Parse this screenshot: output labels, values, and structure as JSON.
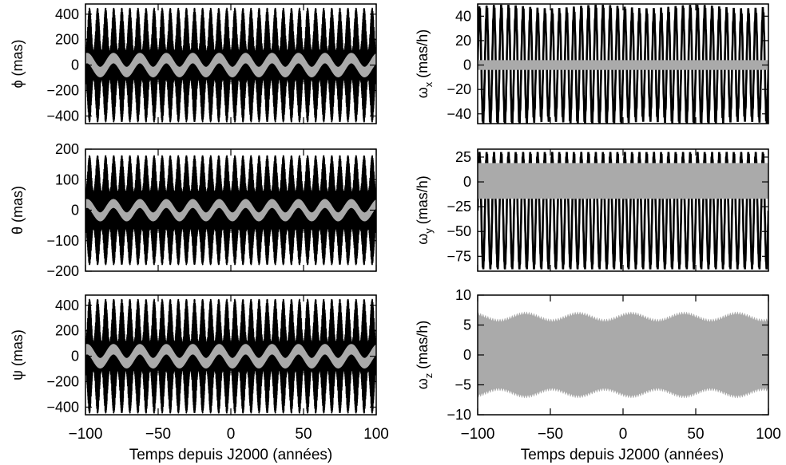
{
  "figure": {
    "xlabel_left": "Temps depuis J2000 (années)",
    "xlabel_right": "Temps depuis J2000 (années)"
  },
  "chart_data": [
    {
      "id": "phi",
      "type": "line",
      "ylabel": "ϕ (mas)",
      "xlim": [
        -100,
        100
      ],
      "ylim": [
        -460,
        480
      ],
      "yticks": [
        400,
        200,
        0,
        -200,
        -400
      ],
      "ytick_labels": [
        "400",
        "200",
        "0",
        "−200",
        "−400"
      ],
      "xticks": [
        -100,
        -50,
        0,
        50,
        100
      ],
      "xtick_labels": [],
      "series": [
        {
          "color": "#000000",
          "envelope": "beat",
          "amplitude_max": 450,
          "amplitude_min": 110,
          "cycles_per_period": 36,
          "band_min": 60,
          "band_max": 100,
          "band_cycles": 40
        },
        {
          "color": "#aaaaaa",
          "envelope": "wave",
          "half_width": 35,
          "mean_offset": 55,
          "wave_cycles": 11
        }
      ]
    },
    {
      "id": "theta",
      "type": "line",
      "ylabel": "θ (mas)",
      "xlim": [
        -100,
        100
      ],
      "ylim": [
        -200,
        200
      ],
      "yticks": [
        200,
        100,
        0,
        -100,
        -200
      ],
      "ytick_labels": [
        "200",
        "100",
        "0",
        "−100",
        "−200"
      ],
      "xticks": [
        -100,
        -50,
        0,
        50,
        100
      ],
      "xtick_labels": [],
      "series": [
        {
          "color": "#000000",
          "envelope": "beat",
          "amplitude_max": 180,
          "amplitude_min": 60,
          "cycles_per_period": 36,
          "band_min": 40,
          "band_max": 55,
          "band_cycles": 40
        },
        {
          "color": "#aaaaaa",
          "envelope": "wave",
          "half_width": 12,
          "mean_offset": 22,
          "wave_cycles": 11
        }
      ]
    },
    {
      "id": "psi",
      "type": "line",
      "ylabel": "ψ (mas)",
      "xlim": [
        -100,
        100
      ],
      "ylim": [
        -460,
        480
      ],
      "yticks": [
        400,
        200,
        0,
        -200,
        -400
      ],
      "ytick_labels": [
        "400",
        "200",
        "0",
        "−200",
        "−400"
      ],
      "xticks": [
        -100,
        -50,
        0,
        50,
        100
      ],
      "xtick_labels": [
        "−100",
        "−50",
        "0",
        "50",
        "100"
      ],
      "series": [
        {
          "color": "#000000",
          "envelope": "beat",
          "amplitude_max": 450,
          "amplitude_min": 110,
          "cycles_per_period": 36,
          "band_min": 60,
          "band_max": 100,
          "band_cycles": 40
        },
        {
          "color": "#aaaaaa",
          "envelope": "wave",
          "half_width": 35,
          "mean_offset": 55,
          "wave_cycles": 11
        }
      ]
    },
    {
      "id": "omega_x",
      "type": "line",
      "ylabel_base": "ω",
      "ylabel_sub": "x",
      "ylabel_unit": "(mas/h)",
      "xlim": [
        -100,
        100
      ],
      "ylim": [
        -48,
        50
      ],
      "yticks": [
        40,
        20,
        0,
        -20,
        -40
      ],
      "ytick_labels": [
        "40",
        "20",
        "0",
        "−20",
        "−40"
      ],
      "xticks": [
        -100,
        -50,
        0,
        50,
        100
      ],
      "xtick_labels": [],
      "series": [
        {
          "color": "#000000",
          "envelope": "osc",
          "amplitude_max": 47,
          "amplitude_min": 44,
          "cycles": 40
        },
        {
          "color": "#aaaaaa",
          "envelope": "band",
          "half_width": 4
        }
      ]
    },
    {
      "id": "omega_y",
      "type": "line",
      "ylabel_base": "ω",
      "ylabel_sub": "y",
      "ylabel_unit": "(mas/h)",
      "xlim": [
        -100,
        100
      ],
      "ylim": [
        -90,
        33
      ],
      "yticks": [
        25,
        0,
        -25,
        -50,
        -75
      ],
      "ytick_labels": [
        "25",
        "0",
        "−25",
        "−50",
        "−75"
      ],
      "xticks": [
        -100,
        -50,
        0,
        50,
        100
      ],
      "xtick_labels": [],
      "series": [
        {
          "color": "#000000",
          "envelope": "osc_asym",
          "top": 28,
          "bottom": -86,
          "cycles": 40
        },
        {
          "color": "#aaaaaa",
          "envelope": "band_asym",
          "top": 19,
          "bottom": -17
        }
      ]
    },
    {
      "id": "omega_z",
      "type": "line",
      "ylabel_base": "ω",
      "ylabel_sub": "z",
      "ylabel_unit": "(mas/h)",
      "xlim": [
        -100,
        100
      ],
      "ylim": [
        -10,
        10
      ],
      "yticks": [
        10,
        5,
        0,
        -5,
        -10
      ],
      "ytick_labels": [
        "10",
        "5",
        "0",
        "−5",
        "−10"
      ],
      "xticks": [
        -100,
        -50,
        0,
        50,
        100
      ],
      "xtick_labels": [
        "−100",
        "−50",
        "0",
        "50",
        "100"
      ],
      "series": [
        {
          "color": "#aaaaaa",
          "envelope": "band_wave",
          "half_width_min": 5.8,
          "half_width_max": 7.0,
          "wave_cycles": 11
        }
      ]
    }
  ]
}
